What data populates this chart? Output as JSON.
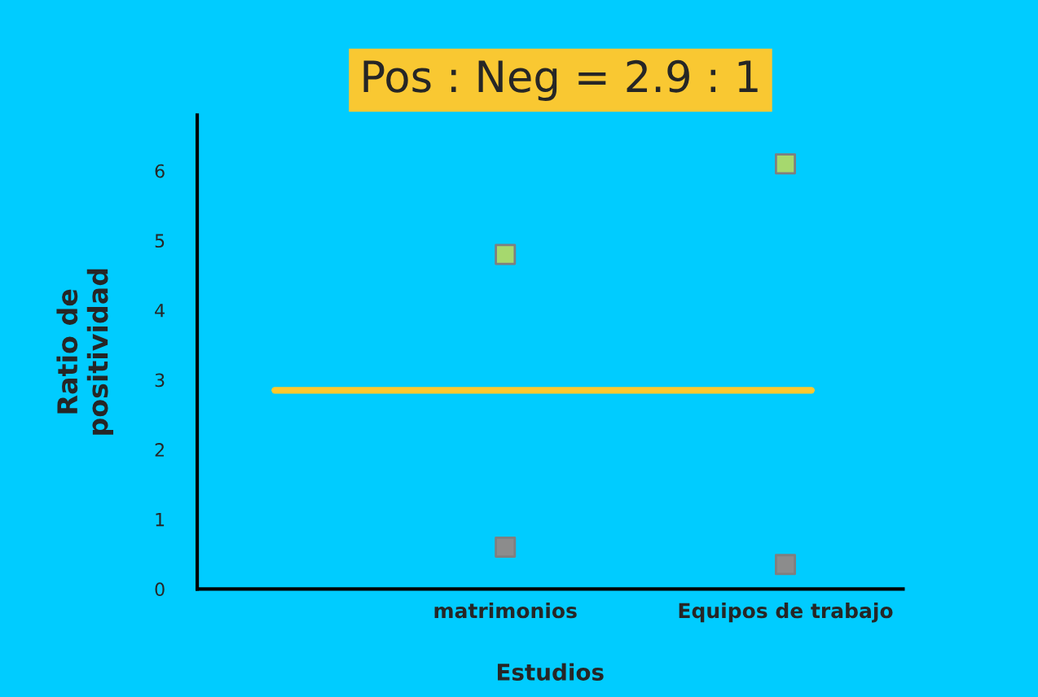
{
  "chart_data": {
    "type": "scatter",
    "title": "Pos : Neg = 2.9 : 1",
    "xlabel": "Estudios",
    "ylabel": "Ratio de\npositividad",
    "categories": [
      null,
      "matrimonios",
      "Equipos de trabajo"
    ],
    "series": [
      {
        "color": "#a6d86e",
        "values": [
          null,
          4.8,
          6.1
        ]
      },
      {
        "color": "#8c8c8c",
        "values": [
          null,
          0.6,
          0.35
        ]
      }
    ],
    "ylim": [
      0,
      6.8
    ],
    "yticks": [
      0,
      1,
      2,
      3,
      4,
      5,
      6
    ],
    "marker": "square",
    "grid": false,
    "legend": false,
    "ref_lines": [
      {
        "axis": "y",
        "value": 2.85,
        "color": "#ffc82e"
      }
    ]
  }
}
